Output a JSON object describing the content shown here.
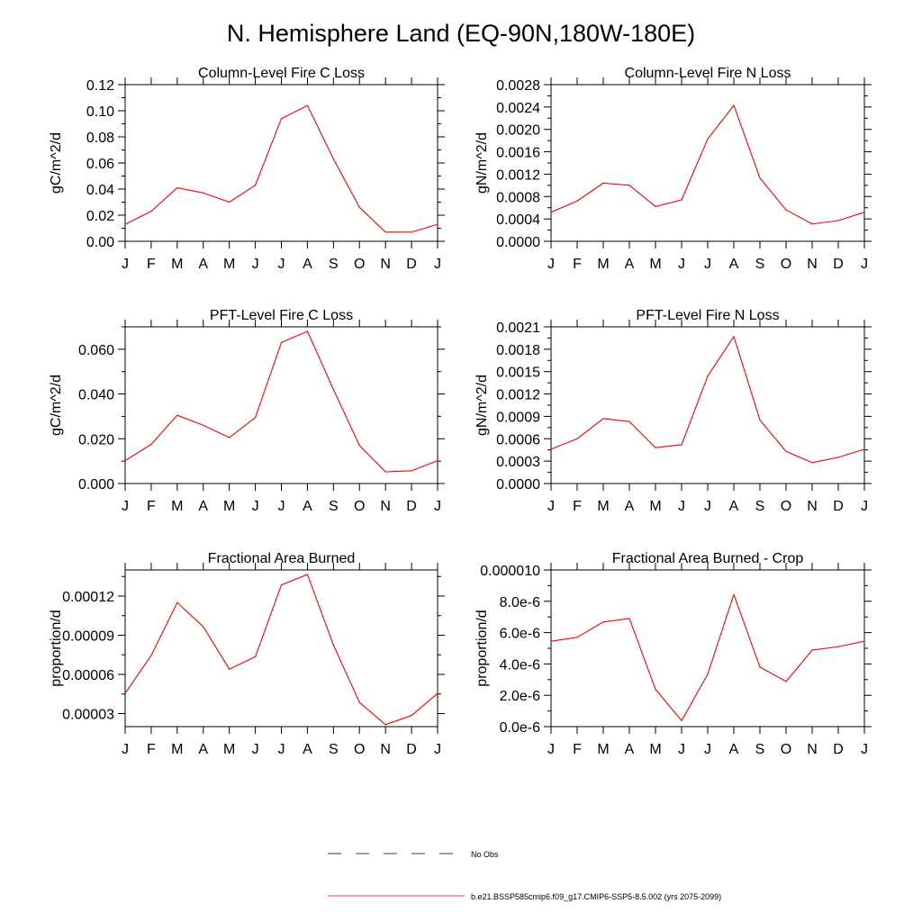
{
  "title": "N. Hemisphere Land (EQ-90N,180W-180E)",
  "legend": {
    "entries": [
      {
        "label": "No Obs",
        "style": "dashed",
        "color": "#000000"
      },
      {
        "label": "b.e21.BSSP585cmip6.f09_g17.CMIP6-SSP5-8.5.002 (yrs 2075-2099)",
        "style": "solid",
        "color": "#ff0000"
      }
    ]
  },
  "colors": {
    "series": "#ff0000",
    "axis": "#000000"
  },
  "chart_data": [
    {
      "type": "line",
      "title": "Column-Level Fire C Loss",
      "ylabel": "gC/m^2/d",
      "categories": [
        "J",
        "F",
        "M",
        "A",
        "M",
        "J",
        "J",
        "A",
        "S",
        "O",
        "N",
        "D",
        "J"
      ],
      "ylim": [
        0,
        0.12
      ],
      "yticks": [
        0,
        0.02,
        0.04,
        0.06,
        0.08,
        0.1,
        0.12
      ],
      "yticklabels": [
        "0.00",
        "0.02",
        "0.04",
        "0.06",
        "0.08",
        "0.10",
        "0.12"
      ],
      "series": [
        {
          "values": [
            0.013,
            0.023,
            0.041,
            0.037,
            0.03,
            0.043,
            0.094,
            0.104,
            0.063,
            0.026,
            0.007,
            0.007,
            0.013
          ]
        }
      ]
    },
    {
      "type": "line",
      "title": "Column-Level Fire N Loss",
      "ylabel": "gN/m^2/d",
      "categories": [
        "J",
        "F",
        "M",
        "A",
        "M",
        "J",
        "J",
        "A",
        "S",
        "O",
        "N",
        "D",
        "J"
      ],
      "ylim": [
        0,
        0.0028
      ],
      "yticks": [
        0,
        0.0004,
        0.0008,
        0.0012,
        0.0016,
        0.002,
        0.0024,
        0.0028
      ],
      "yticklabels": [
        "0.0000",
        "0.0004",
        "0.0008",
        "0.0012",
        "0.0016",
        "0.0020",
        "0.0024",
        "0.0028"
      ],
      "series": [
        {
          "values": [
            0.00052,
            0.00072,
            0.00104,
            0.001,
            0.00062,
            0.00074,
            0.00183,
            0.00243,
            0.00113,
            0.00056,
            0.00031,
            0.00037,
            0.00052
          ]
        }
      ]
    },
    {
      "type": "line",
      "title": "PFT-Level Fire C Loss",
      "ylabel": "gC/m^2/d",
      "categories": [
        "J",
        "F",
        "M",
        "A",
        "M",
        "J",
        "J",
        "A",
        "S",
        "O",
        "N",
        "D",
        "J"
      ],
      "ylim": [
        0,
        0.07
      ],
      "yticks": [
        0,
        0.02,
        0.04,
        0.06
      ],
      "yticklabels": [
        "0.000",
        "0.020",
        "0.040",
        "0.060"
      ],
      "series": [
        {
          "values": [
            0.0102,
            0.0175,
            0.0305,
            0.026,
            0.0205,
            0.0295,
            0.063,
            0.068,
            0.042,
            0.017,
            0.0052,
            0.0057,
            0.0102
          ]
        }
      ]
    },
    {
      "type": "line",
      "title": "PFT-Level Fire N Loss",
      "ylabel": "gN/m^2/d",
      "categories": [
        "J",
        "F",
        "M",
        "A",
        "M",
        "J",
        "J",
        "A",
        "S",
        "O",
        "N",
        "D",
        "J"
      ],
      "ylim": [
        0,
        0.0021
      ],
      "yticks": [
        0,
        0.0003,
        0.0006,
        0.0009,
        0.0012,
        0.0015,
        0.0018,
        0.0021
      ],
      "yticklabels": [
        "0.0000",
        "0.0003",
        "0.0006",
        "0.0009",
        "0.0012",
        "0.0015",
        "0.0018",
        "0.0021"
      ],
      "series": [
        {
          "values": [
            0.00046,
            0.0006,
            0.00087,
            0.00083,
            0.00048,
            0.00052,
            0.00144,
            0.00197,
            0.00085,
            0.00043,
            0.00028,
            0.00035,
            0.00046
          ]
        }
      ]
    },
    {
      "type": "line",
      "title": "Fractional Area Burned",
      "ylabel": "proportion/d",
      "categories": [
        "J",
        "F",
        "M",
        "A",
        "M",
        "J",
        "J",
        "A",
        "S",
        "O",
        "N",
        "D",
        "J"
      ],
      "ylim": [
        2e-05,
        0.00014
      ],
      "yticks": [
        3e-05,
        6e-05,
        9e-05,
        0.00012
      ],
      "yticklabels": [
        "0.00003",
        "0.00006",
        "0.00009",
        "0.00012"
      ],
      "series": [
        {
          "values": [
            4.55e-05,
            7.45e-05,
            0.000115,
            9.65e-05,
            6.4e-05,
            7.35e-05,
            0.0001285,
            0.0001365,
            8.25e-05,
            3.85e-05,
            2.15e-05,
            2.85e-05,
            4.55e-05
          ]
        }
      ]
    },
    {
      "type": "line",
      "title": "Fractional Area Burned - Crop",
      "ylabel": "proportion/d",
      "categories": [
        "J",
        "F",
        "M",
        "A",
        "M",
        "J",
        "J",
        "A",
        "S",
        "O",
        "N",
        "D",
        "J"
      ],
      "ylim": [
        0,
        1e-05
      ],
      "yticks": [
        0,
        2e-06,
        4e-06,
        6e-06,
        8e-06,
        1e-05
      ],
      "yticklabels": [
        "0.0e-6",
        "2.0e-6",
        "4.0e-6",
        "6.0e-6",
        "8.0e-6",
        "0.000010"
      ],
      "series": [
        {
          "values": [
            5.45e-06,
            5.7e-06,
            6.68e-06,
            6.9e-06,
            2.38e-06,
            3.8e-07,
            3.35e-06,
            8.43e-06,
            3.8e-06,
            2.88e-06,
            4.88e-06,
            5.1e-06,
            5.45e-06
          ]
        }
      ]
    }
  ]
}
